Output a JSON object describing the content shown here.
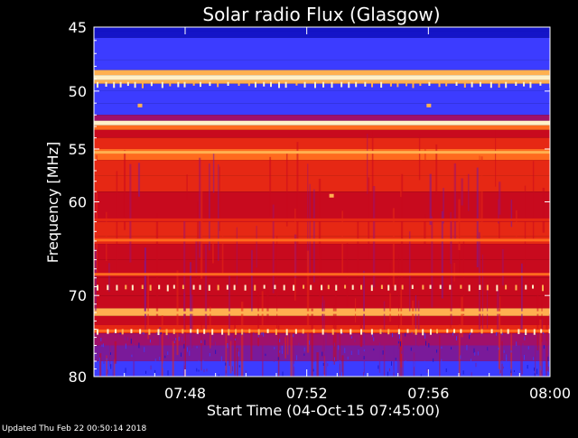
{
  "colors": {
    "background": "#000000",
    "text": "#ffffff",
    "colormap": [
      "#000060",
      "#1414c8",
      "#3c3cff",
      "#7a1a9a",
      "#a0106a",
      "#c80a1e",
      "#e62814",
      "#ff6a1e",
      "#ffb050",
      "#fff0c8"
    ]
  },
  "footer": {
    "updated": "Updated Thu Feb 22 00:50:14 2018"
  },
  "chart_data": {
    "type": "heatmap",
    "title": "Solar radio Flux (Glasgow)",
    "xlabel": "Start Time (04-Oct-15 07:45:00)",
    "ylabel": "Frequency [MHz]",
    "colormap": "rainbow (blue = low flux, red/white = high flux)",
    "x_ticks": [
      "07:48",
      "07:52",
      "07:56",
      "08:00"
    ],
    "x_tick_minutes": [
      3,
      7,
      11,
      15
    ],
    "x_range_minutes": [
      0,
      15
    ],
    "y_ticks": [
      45,
      50,
      55,
      60,
      70,
      80
    ],
    "ylim": [
      45,
      80
    ],
    "y_scale": "log",
    "y_inverted": true,
    "frequency_profile": [
      {
        "f0": 45.0,
        "f1": 45.3,
        "level": 0.5
      },
      {
        "f0": 45.3,
        "f1": 45.8,
        "level": 1.2
      },
      {
        "f0": 45.8,
        "f1": 47.5,
        "level": 1.5
      },
      {
        "f0": 47.5,
        "f1": 48.3,
        "level": 2.1
      },
      {
        "f0": 48.3,
        "f1": 48.7,
        "level": 8.0
      },
      {
        "f0": 48.7,
        "f1": 49.1,
        "level": 9.6
      },
      {
        "f0": 49.1,
        "f1": 49.4,
        "level": 7.6
      },
      {
        "f0": 49.4,
        "f1": 50.0,
        "level": 2.4
      },
      {
        "f0": 50.0,
        "f1": 51.0,
        "level": 1.7
      },
      {
        "f0": 51.0,
        "f1": 52.0,
        "level": 2.2
      },
      {
        "f0": 52.0,
        "f1": 52.5,
        "level": 4.2
      },
      {
        "f0": 52.5,
        "f1": 52.9,
        "level": 9.2
      },
      {
        "f0": 52.9,
        "f1": 53.3,
        "level": 6.6
      },
      {
        "f0": 53.3,
        "f1": 54.0,
        "level": 5.4
      },
      {
        "f0": 54.0,
        "f1": 55.0,
        "level": 6.4
      },
      {
        "f0": 55.0,
        "f1": 56.0,
        "level": 7.3
      },
      {
        "f0": 56.0,
        "f1": 57.5,
        "level": 6.4
      },
      {
        "f0": 57.5,
        "f1": 59.0,
        "level": 5.7
      },
      {
        "f0": 59.0,
        "f1": 62.0,
        "level": 5.2
      },
      {
        "f0": 62.0,
        "f1": 63.5,
        "level": 5.5
      },
      {
        "f0": 63.5,
        "f1": 64.3,
        "level": 6.2
      },
      {
        "f0": 64.3,
        "f1": 66.0,
        "level": 5.3
      },
      {
        "f0": 66.0,
        "f1": 68.0,
        "level": 5.0
      },
      {
        "f0": 68.0,
        "f1": 70.0,
        "level": 5.2
      },
      {
        "f0": 70.0,
        "f1": 71.5,
        "level": 5.0
      },
      {
        "f0": 71.5,
        "f1": 72.4,
        "level": 7.6
      },
      {
        "f0": 72.4,
        "f1": 73.5,
        "level": 5.0
      },
      {
        "f0": 73.5,
        "f1": 74.5,
        "level": 5.6
      },
      {
        "f0": 74.5,
        "f1": 76.0,
        "level": 4.0
      },
      {
        "f0": 76.0,
        "f1": 78.0,
        "level": 3.0
      },
      {
        "f0": 78.0,
        "f1": 80.0,
        "level": 2.3
      }
    ],
    "persistent_lines_mhz": [
      {
        "freq": 48.9,
        "level": 9.8
      },
      {
        "freq": 52.7,
        "level": 9.4
      },
      {
        "freq": 55.3,
        "level": 7.8
      },
      {
        "freq": 61.8,
        "level": 6.4
      },
      {
        "freq": 63.9,
        "level": 6.8
      },
      {
        "freq": 67.6,
        "level": 6.5
      },
      {
        "freq": 72.0,
        "level": 8.2
      },
      {
        "freq": 74.2,
        "level": 7.0
      }
    ],
    "dashed_bands_mhz": [
      49.4,
      69.0,
      74.2
    ],
    "spots": [
      {
        "minute": 1.5,
        "freq": 51.2,
        "level": 8.0
      },
      {
        "minute": 7.8,
        "freq": 59.4,
        "level": 8.0
      },
      {
        "minute": 11.0,
        "freq": 51.2,
        "level": 8.0
      }
    ]
  }
}
